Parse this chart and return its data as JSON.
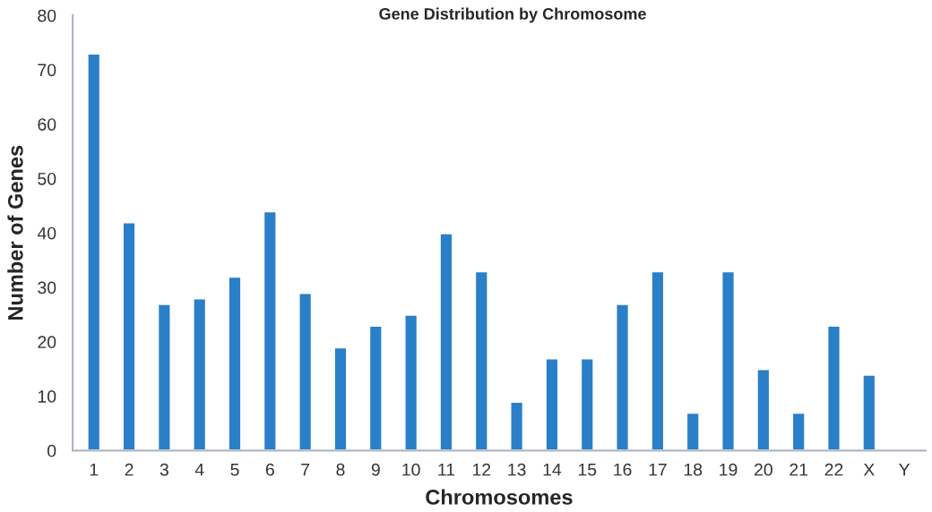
{
  "chart_data": {
    "type": "bar",
    "title": "Gene Distribution by Chromosome",
    "xlabel": "Chromosomes",
    "ylabel": "Number of Genes",
    "categories": [
      "1",
      "2",
      "3",
      "4",
      "5",
      "6",
      "7",
      "8",
      "9",
      "10",
      "11",
      "12",
      "13",
      "14",
      "15",
      "16",
      "17",
      "18",
      "19",
      "20",
      "21",
      "22",
      "X",
      "Y"
    ],
    "values": [
      73,
      42,
      27,
      28,
      32,
      44,
      29,
      19,
      23,
      25,
      40,
      33,
      9,
      17,
      17,
      27,
      33,
      7,
      33,
      15,
      7,
      23,
      14,
      null
    ],
    "color": "#2a7fc9",
    "ylim": [
      0,
      80
    ],
    "yticks": [
      0,
      10,
      20,
      30,
      40,
      50,
      60,
      70,
      80
    ],
    "grid": false,
    "legend": false
  }
}
